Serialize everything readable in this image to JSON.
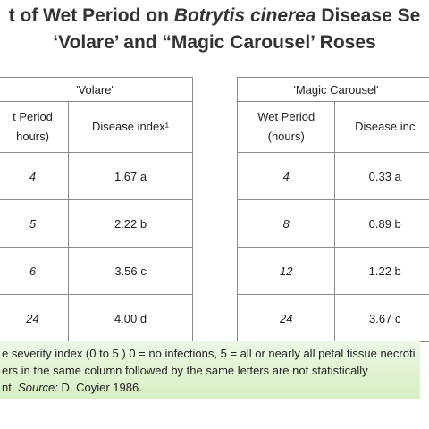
{
  "title": {
    "line1": [
      "t of Wet Period on ",
      "Botrytis cinerea",
      " Disease Se"
    ],
    "line2": "‘Volare’ and “Magic Carousel’ Roses"
  },
  "tables": [
    {
      "caption": "'Volare'",
      "columns": [
        "t Period\nhours)",
        "Disease index¹"
      ],
      "rows": [
        [
          "4",
          "1.67 a"
        ],
        [
          "5",
          "2.22 b"
        ],
        [
          "6",
          "3.56 c"
        ],
        [
          "24",
          "4.00 d"
        ]
      ]
    },
    {
      "caption": "'Magic Carousel'",
      "columns": [
        "Wet Period\n(hours)",
        "Disease inc"
      ],
      "rows": [
        [
          "4",
          "0.33 a"
        ],
        [
          "8",
          "0.89 b"
        ],
        [
          "12",
          "1.22 b"
        ],
        [
          "24",
          "3.67 c"
        ]
      ]
    }
  ],
  "footnote": {
    "line1": "e severity index (0 to 5 ) 0 = no infections, 5 = all or nearly all petal tissue necroti",
    "line2": "ers in the same column followed by the same letters are not statistically",
    "line3": [
      "nt. ",
      "Source:",
      " D. Coyier 1986."
    ]
  }
}
